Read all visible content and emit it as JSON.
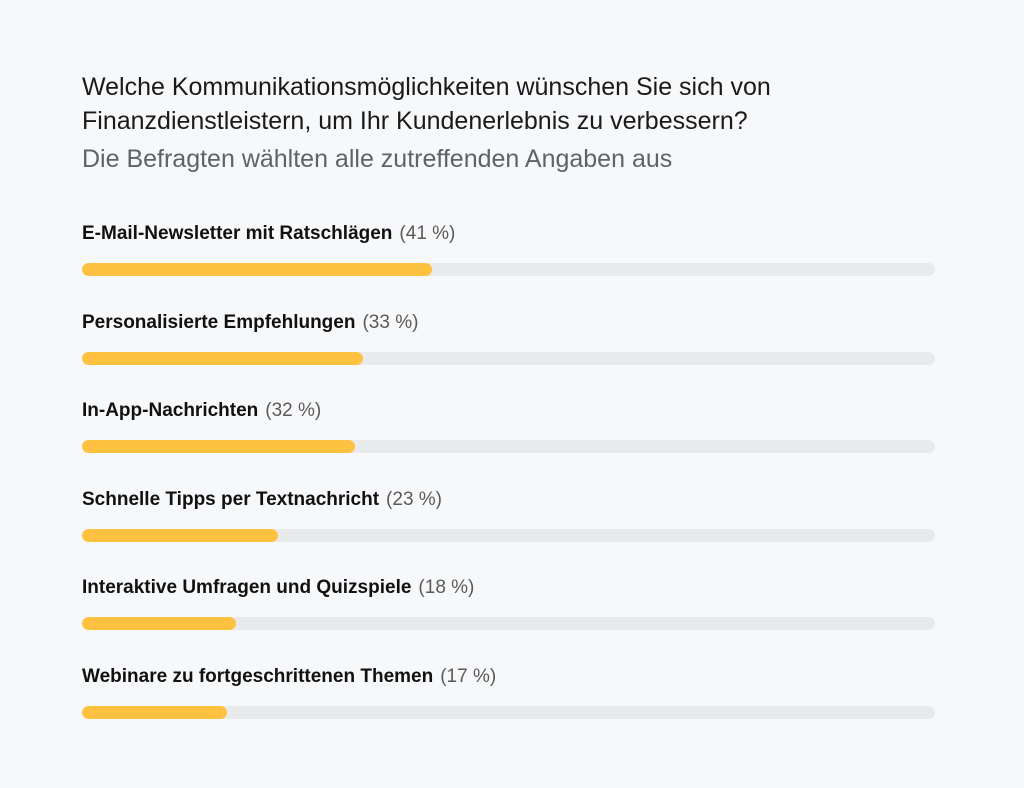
{
  "chart_data": {
    "type": "bar",
    "orientation": "horizontal",
    "title": "Welche Kommunikationsmöglichkeiten wünschen Sie sich von Finanzdienstleistern, um Ihr Kundenerlebnis zu verbessern?",
    "subtitle": "Die Befragten wählten alle zutreffenden Angaben aus",
    "categories": [
      "E-Mail-Newsletter mit Ratschlägen",
      "Personalisierte Empfehlungen",
      "In-App-Nachrichten",
      "Schnelle Tipps per Textnachricht",
      "Interaktive Umfragen und Quizspiele",
      "Webinare zu fortgeschrittenen Themen"
    ],
    "values": [
      41,
      33,
      32,
      23,
      18,
      17
    ],
    "value_labels": [
      "(41 %)",
      "(33 %)",
      "(32 %)",
      "(23 %)",
      "(18 %)",
      "(17 %)"
    ],
    "xlim": [
      0,
      100
    ],
    "grid": false,
    "colors": {
      "bar": "#ffc140",
      "track": "#e9eaec",
      "background": "#f7f8fa"
    }
  }
}
